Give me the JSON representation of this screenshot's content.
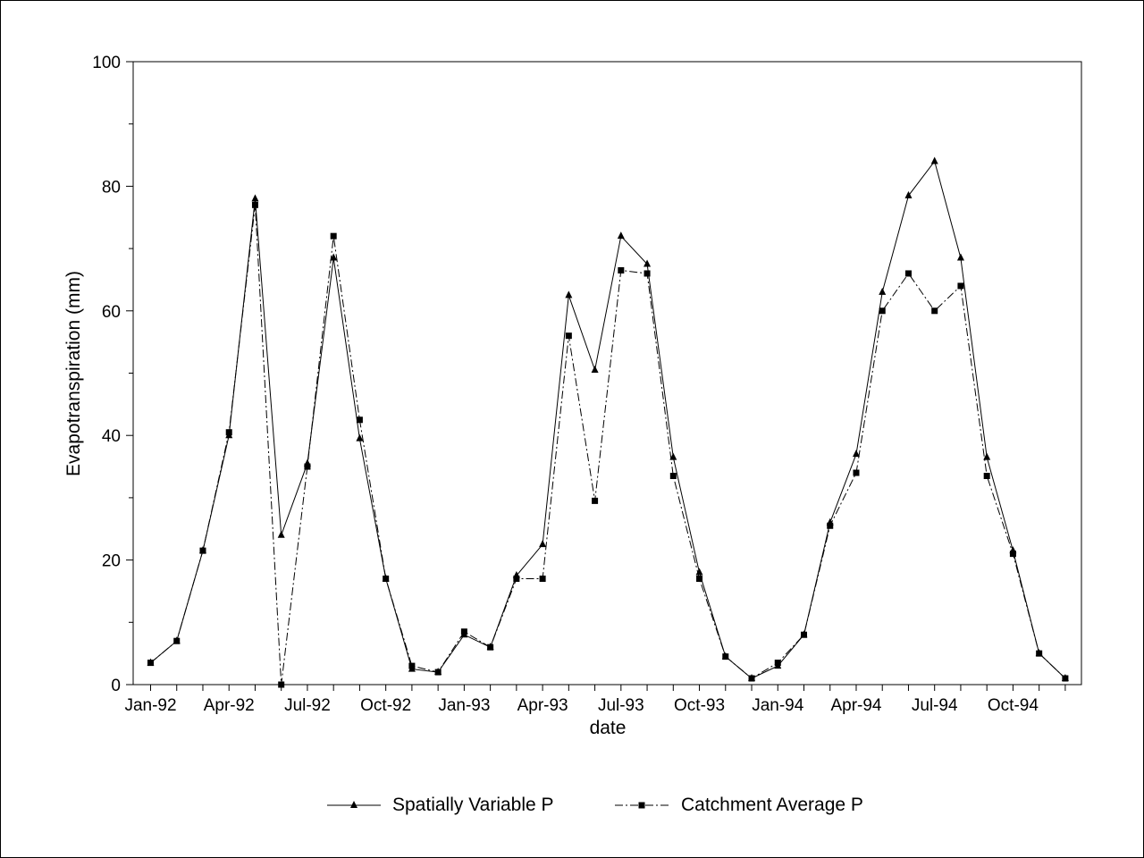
{
  "chart_data": {
    "type": "line",
    "title": "",
    "xlabel": "date",
    "ylabel": "Evapotranspiration (mm)",
    "ylim": [
      0,
      100
    ],
    "y_ticks": [
      0,
      20,
      40,
      60,
      80,
      100
    ],
    "x_tick_labels": [
      "Jan-92",
      "Apr-92",
      "Jul-92",
      "Oct-92",
      "Jan-93",
      "Apr-93",
      "Jul-93",
      "Oct-93",
      "Jan-94",
      "Apr-94",
      "Jul-94",
      "Oct-94"
    ],
    "x": [
      "Jan-92",
      "Feb-92",
      "Mar-92",
      "Apr-92",
      "May-92",
      "Jun-92",
      "Jul-92",
      "Aug-92",
      "Sep-92",
      "Oct-92",
      "Nov-92",
      "Dec-92",
      "Jan-93",
      "Feb-93",
      "Mar-93",
      "Apr-93",
      "May-93",
      "Jun-93",
      "Jul-93",
      "Aug-93",
      "Sep-93",
      "Oct-93",
      "Nov-93",
      "Dec-93",
      "Jan-94",
      "Feb-94",
      "Mar-94",
      "Apr-94",
      "May-94",
      "Jun-94",
      "Jul-94",
      "Aug-94",
      "Sep-94",
      "Oct-94",
      "Nov-94",
      "Dec-94"
    ],
    "series": [
      {
        "name": "Spatially Variable P",
        "marker": "triangle",
        "line": "solid",
        "values": [
          3.5,
          7.0,
          21.5,
          40.0,
          78.0,
          24.0,
          35.5,
          68.5,
          39.5,
          17.0,
          2.5,
          2.0,
          8.0,
          6.0,
          17.5,
          22.5,
          62.5,
          50.5,
          72.0,
          67.5,
          36.5,
          18.0,
          4.5,
          1.0,
          3.0,
          8.0,
          26.0,
          37.0,
          63.0,
          78.5,
          84.0,
          68.5,
          36.5,
          21.5,
          5.0,
          1.0
        ]
      },
      {
        "name": "Catchment Average P",
        "marker": "square",
        "line": "dash-dot",
        "values": [
          3.5,
          7.0,
          21.5,
          40.5,
          77.0,
          0.0,
          35.0,
          72.0,
          42.5,
          17.0,
          3.0,
          2.0,
          8.5,
          6.0,
          17.0,
          17.0,
          56.0,
          29.5,
          66.5,
          66.0,
          33.5,
          17.0,
          4.5,
          1.0,
          3.5,
          8.0,
          25.5,
          34.0,
          60.0,
          66.0,
          60.0,
          64.0,
          33.5,
          21.0,
          5.0,
          1.0
        ]
      }
    ],
    "grid": false,
    "legend_position": "bottom"
  }
}
